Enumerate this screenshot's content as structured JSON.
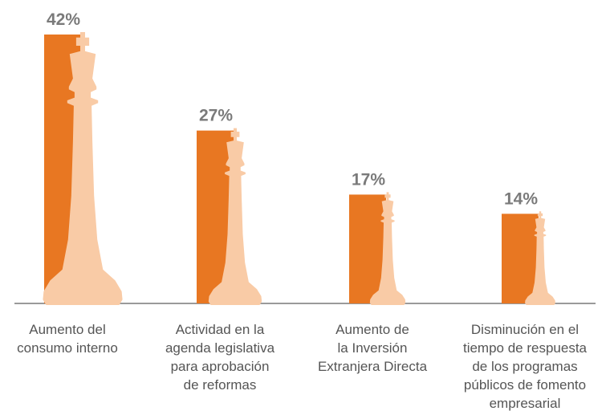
{
  "chart_data": {
    "type": "bar",
    "categories": [
      [
        "Aumento del",
        "consumo interno"
      ],
      [
        "Actividad en la",
        "agenda legislativa",
        "para aprobación",
        "de reformas"
      ],
      [
        "Aumento de",
        "la Inversión",
        "Extranjera Directa"
      ],
      [
        "Disminución en el",
        "tiempo de respuesta",
        "de los programas",
        "públicos de fomento",
        "empresarial"
      ]
    ],
    "values": [
      42,
      27,
      17,
      14
    ],
    "value_labels": [
      "42%",
      "27%",
      "17%",
      "14%"
    ],
    "color": "#e87722"
  }
}
